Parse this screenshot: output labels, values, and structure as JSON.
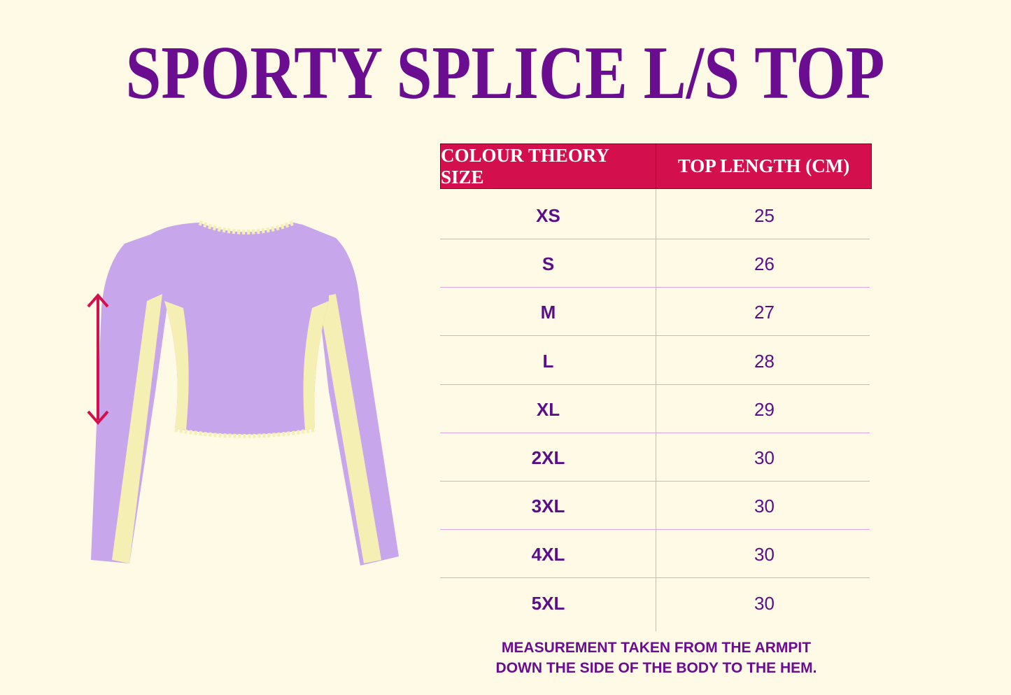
{
  "title": "SPORTY SPLICE L/S TOP",
  "table": {
    "headers": [
      "COLOUR THEORY SIZE",
      "TOP LENGTH (CM)"
    ],
    "rows": [
      [
        "XS",
        "25"
      ],
      [
        "S",
        "26"
      ],
      [
        "M",
        "27"
      ],
      [
        "L",
        "28"
      ],
      [
        "XL",
        "29"
      ],
      [
        "2XL",
        "30"
      ],
      [
        "3XL",
        "30"
      ],
      [
        "4XL",
        "30"
      ],
      [
        "5XL",
        "30"
      ]
    ]
  },
  "note": [
    "MEASUREMENT TAKEN FROM THE ARMPIT",
    "DOWN THE SIDE OF THE BODY TO THE HEM."
  ]
}
